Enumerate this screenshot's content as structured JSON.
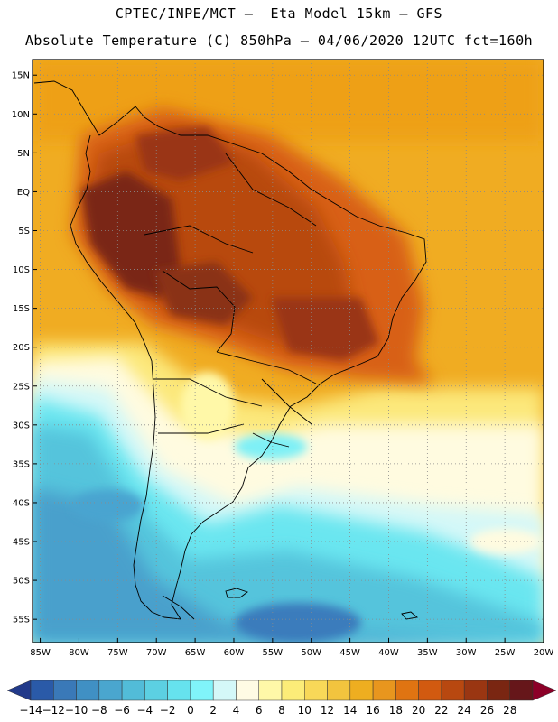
{
  "header": {
    "line1": "CPTEC/INPE/MCT –  Eta Model 15km – GFS",
    "line2": "Absolute Temperature (C) 850hPa – 04/06/2020 12UTC fct=160h"
  },
  "map": {
    "lat_labels": [
      "15N",
      "10N",
      "5N",
      "EQ",
      "5S",
      "10S",
      "15S",
      "20S",
      "25S",
      "30S",
      "35S",
      "40S",
      "45S",
      "50S",
      "55S"
    ],
    "lat_values": [
      15,
      10,
      5,
      0,
      -5,
      -10,
      -15,
      -20,
      -25,
      -30,
      -35,
      -40,
      -45,
      -50,
      -55
    ],
    "lon_labels": [
      "85W",
      "80W",
      "75W",
      "70W",
      "65W",
      "60W",
      "55W",
      "50W",
      "45W",
      "40W",
      "35W",
      "30W",
      "25W",
      "20W"
    ],
    "lon_values": [
      -85,
      -80,
      -75,
      -70,
      -65,
      -60,
      -55,
      -50,
      -45,
      -40,
      -35,
      -30,
      -25,
      -20
    ],
    "lon_range": [
      -86,
      -20
    ],
    "lat_range": [
      -58,
      17
    ],
    "grid": "dotted"
  },
  "colorbar": {
    "labels": [
      "-14",
      "-12",
      "-10",
      "-8",
      "-6",
      "-4",
      "-2",
      "0",
      "2",
      "4",
      "6",
      "8",
      "10",
      "12",
      "14",
      "16",
      "18",
      "20",
      "22",
      "24",
      "26",
      "28"
    ],
    "colors": [
      "#223a8a",
      "#2a5aa8",
      "#3a79b8",
      "#4090c4",
      "#4aa6cf",
      "#52bcd8",
      "#5cd0e2",
      "#66e2ee",
      "#80f4fa",
      "#d4f8f8",
      "#fffbe4",
      "#fff8a8",
      "#fcec78",
      "#f8d858",
      "#f2c43e",
      "#eeae20",
      "#e8961e",
      "#e07412",
      "#d25a10",
      "#b84810",
      "#9a3612",
      "#7a2612",
      "#66161a",
      "#8c0028"
    ]
  }
}
